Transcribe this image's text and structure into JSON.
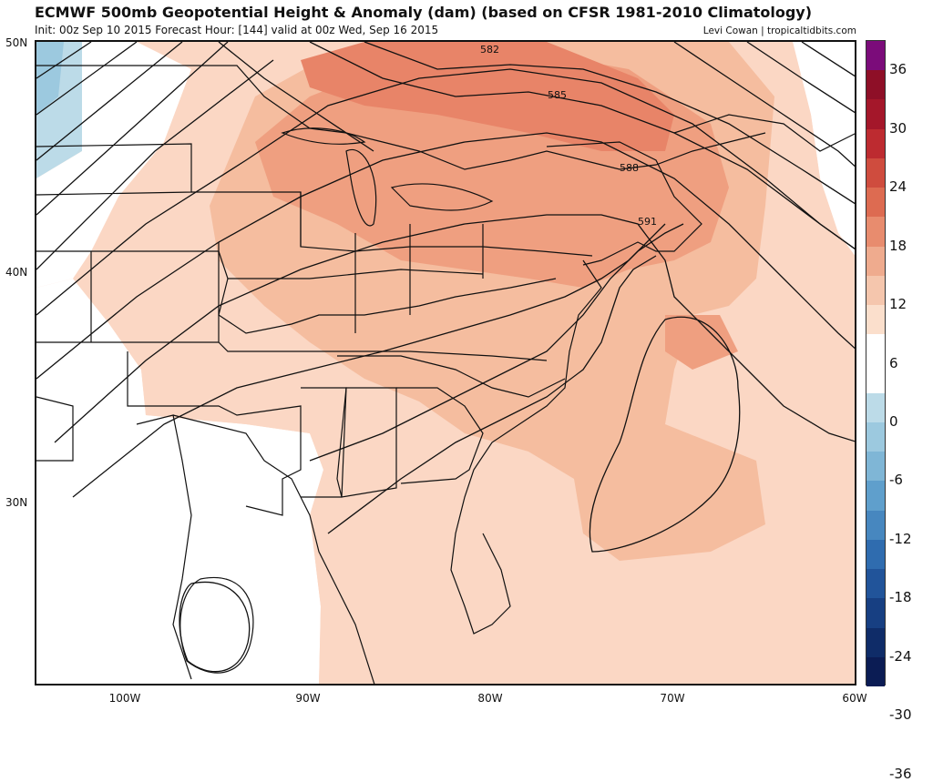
{
  "header": {
    "title": "ECMWF 500mb Geopotential Height & Anomaly (dam) (based on CFSR 1981-2010 Climatology)",
    "subtitle": "Init: 00z Sep 10 2015   Forecast Hour: [144]   valid at 00z Wed, Sep 16 2015",
    "credit": "Levi Cowan | tropicaltidbits.com"
  },
  "map": {
    "lat_labels": [
      "50N",
      "40N",
      "30N"
    ],
    "lon_labels": [
      "100W",
      "90W",
      "80W",
      "70W",
      "60W"
    ],
    "contour_labels": [
      "582",
      "585",
      "588",
      "591"
    ]
  },
  "colorbar": {
    "labels": [
      "36",
      "30",
      "24",
      "18",
      "12",
      "6",
      "0",
      "-6",
      "-12",
      "-18",
      "-24",
      "-30",
      "-36"
    ],
    "colors": [
      "#7b0c7a",
      "#8e0f27",
      "#a4172a",
      "#bd2b30",
      "#cf4c3e",
      "#dd6b51",
      "#e88c6e",
      "#efab8e",
      "#f5c6ad",
      "#fbdfcc",
      "#ffffff",
      "#ffffff",
      "#bcdbe8",
      "#9cc9df",
      "#7fb6d6",
      "#5f9fcc",
      "#4787bf",
      "#2f6caf",
      "#21549a",
      "#173f82",
      "#0f2c68",
      "#0b1c54"
    ]
  }
}
